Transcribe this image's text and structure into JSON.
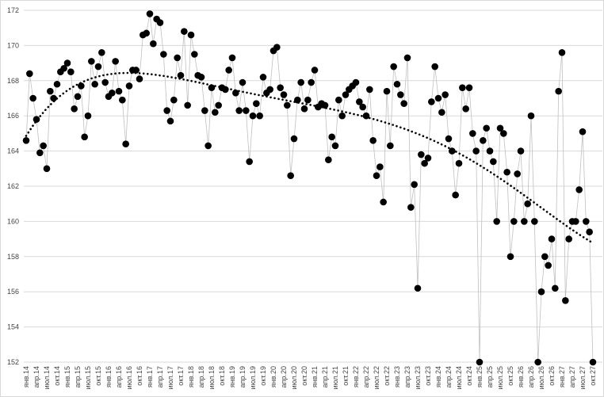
{
  "chart_data": {
    "type": "scatter",
    "categories": [
      "янв.14",
      null,
      null,
      "апр.14",
      null,
      null,
      "июл.14",
      null,
      null,
      "окт.14",
      null,
      null,
      "янв.15",
      null,
      null,
      "апр.15",
      null,
      null,
      "июл.15",
      null,
      null,
      "окт.15",
      null,
      null,
      "янв.16",
      null,
      null,
      "апр.16",
      null,
      null,
      "июл.16",
      null,
      null,
      "окт.16",
      null,
      null,
      "янв.17",
      null,
      null,
      "апр.17",
      null,
      null,
      "июл.17",
      null,
      null,
      "окт.17",
      null,
      null,
      "янв.18",
      null,
      null,
      "апр.18",
      null,
      null,
      "июл.18",
      null,
      null,
      "окт.18",
      null,
      null,
      "янв.19",
      null,
      null,
      "апр.19",
      null,
      null,
      "июл.19",
      null,
      null,
      "окт.19",
      null,
      null,
      "янв.20",
      null,
      null,
      "апр.20",
      null,
      null,
      "июл.20",
      null,
      null,
      "окт.20",
      null,
      null,
      "янв.21",
      null,
      null,
      "апр.21",
      null,
      null,
      "июл.21",
      null,
      null,
      "окт.21",
      null,
      null,
      "янв.22",
      null,
      null,
      "апр.22",
      null,
      null,
      "июл.22",
      null,
      null,
      "окт.22",
      null,
      null,
      "янв.23",
      null,
      null,
      "апр.23",
      null,
      null,
      "июл.23",
      null,
      null,
      "окт.23",
      null,
      null,
      "янв.24",
      null,
      null,
      "апр.24",
      null,
      null,
      "июл.24",
      null,
      null,
      "окт.24",
      null,
      null,
      "янв.25",
      null,
      null,
      "апр.25",
      null,
      null,
      "июл.25",
      null,
      null,
      "окт.25",
      null,
      null,
      "янв.26",
      null,
      null,
      "апр.26",
      null,
      null,
      "июл.26",
      null,
      null,
      "окт.26",
      null,
      null,
      "янв.27",
      null,
      null,
      "апр.27",
      null,
      null,
      "июл.27",
      null,
      null,
      "окт.27"
    ],
    "values": [
      164.6,
      168.4,
      167.0,
      165.8,
      163.9,
      164.3,
      163.0,
      167.4,
      167.0,
      167.8,
      168.5,
      168.7,
      169.0,
      168.5,
      166.4,
      167.1,
      167.7,
      164.8,
      166.0,
      169.1,
      167.8,
      168.8,
      169.6,
      167.9,
      167.1,
      167.3,
      169.1,
      167.4,
      166.9,
      164.4,
      167.7,
      168.6,
      168.6,
      168.1,
      170.6,
      170.7,
      171.8,
      170.1,
      171.5,
      171.3,
      169.5,
      166.3,
      165.7,
      166.9,
      169.3,
      168.3,
      170.8,
      166.6,
      170.6,
      169.5,
      168.3,
      168.2,
      166.3,
      164.3,
      167.6,
      166.2,
      166.6,
      167.6,
      167.5,
      168.6,
      169.3,
      167.3,
      166.3,
      167.9,
      166.3,
      163.4,
      166.0,
      166.7,
      166.0,
      168.2,
      167.3,
      167.5,
      169.7,
      169.9,
      167.6,
      167.2,
      166.6,
      162.6,
      164.7,
      166.9,
      167.9,
      166.4,
      166.9,
      167.9,
      168.6,
      166.5,
      166.7,
      166.6,
      163.5,
      164.8,
      164.3,
      166.9,
      166.0,
      167.2,
      167.5,
      167.7,
      167.9,
      166.8,
      166.5,
      166.0,
      167.5,
      164.6,
      162.6,
      163.1,
      161.1,
      167.4,
      164.3,
      168.8,
      167.8,
      167.2,
      166.7,
      169.3,
      160.8,
      162.1,
      156.2,
      163.8,
      163.3,
      163.6,
      166.8,
      168.8,
      167.0,
      166.2,
      167.2,
      164.7,
      164.0,
      161.5,
      163.3,
      167.6,
      166.4,
      167.6,
      165.0,
      164.0,
      152.0,
      164.6,
      165.3,
      164.0,
      163.4,
      160.0,
      165.3,
      165.0,
      162.8,
      158.0,
      160.0,
      162.7,
      164.0,
      160.0,
      161.0,
      166.0,
      160.0,
      152.0,
      156.0,
      158.0,
      157.5,
      159.0,
      156.2,
      167.4,
      169.6,
      155.5,
      159.0,
      160.0,
      160.0,
      161.8,
      165.1,
      160.0,
      159.4,
      152.0
    ],
    "color": "#000000",
    "line_color": "#c0c0c0",
    "trendline": {
      "type": "polynomial",
      "order": 5
    },
    "ylim": [
      152,
      172
    ],
    "yticks": [
      152,
      154,
      156,
      158,
      160,
      162,
      164,
      166,
      168,
      170,
      172
    ],
    "grid": true
  }
}
